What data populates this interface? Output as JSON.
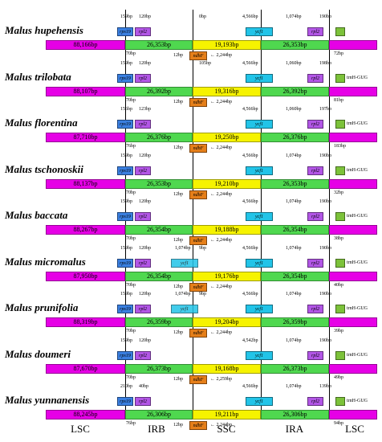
{
  "colors": {
    "lsc": "#e600e6",
    "irb": "#4fd84f",
    "ssc": "#f6f300",
    "ira": "#4fd84f",
    "rps19": "#3a7fe0",
    "rpl2": "#b256e6",
    "ycf1": "#22c4e8",
    "ndhF": "#e57f1a",
    "trnH": "#7cc23a"
  },
  "regions": [
    "LSC",
    "IRB",
    "SSC",
    "IRA",
    "LSC"
  ],
  "tracks": [
    {
      "species": "Malus hupehensis",
      "top": {
        "rps19": "rps19",
        "rpl2": "rpl2",
        "ycf1": "ycf1",
        "rpl2b": "rpl2",
        "trnH": ""
      },
      "top_ann": [
        "159bp",
        "120bp",
        "0bp",
        "4,566bp",
        "1,074bp",
        "190bp"
      ],
      "bars": {
        "lsc": "88,166bp",
        "irb": "26,353bp",
        "ssc": "19,193bp",
        "ira": "26,353bp"
      },
      "bottom_ann": [
        "70bp",
        "12bp",
        "2,244bp",
        "72bp"
      ],
      "ndhF": "ndhF"
    },
    {
      "species": "Malus trilobata",
      "top": {
        "rps19": "rps19",
        "rpl2": "rpl2",
        "ycf1": "ycf1",
        "rpl2b": "rpl2",
        "trnH": "trnH-GUG"
      },
      "top_ann": [
        "159bp",
        "120bp",
        "105bp",
        "4,566bp",
        "1,060bp",
        "198bp"
      ],
      "bars": {
        "lsc": "88,107bp",
        "irb": "26,392bp",
        "ssc": "19,316bp",
        "ira": "26,392bp"
      },
      "bottom_ann": [
        "70bp",
        "12bp",
        "2,244bp",
        "81bp"
      ],
      "ndhF": "ndhF"
    },
    {
      "species": "Malus florentina",
      "top": {
        "rps19": "rps19",
        "rpl2": "rpl2",
        "ycf1": "ycf1",
        "rpl2b": "rpl2",
        "trnH": "trnH-GUG"
      },
      "top_ann": [
        "156bp",
        "123bp",
        "",
        "4,566bp",
        "1,060bp",
        "197bp"
      ],
      "bars": {
        "lsc": "87,710bp",
        "irb": "26,376bp",
        "ssc": "19,250bp",
        "ira": "26,376bp"
      },
      "bottom_ann": [
        "76bp",
        "12bp",
        "2,244bp",
        "183bp"
      ],
      "ndhF": "ndhF"
    },
    {
      "species": "Malus tschonoskii",
      "top": {
        "rps19": "rps19",
        "rpl2": "rpl2",
        "ycf1": "ycf1",
        "rpl2b": "rpl2",
        "trnH": "trnH-GUG"
      },
      "top_ann": [
        "159bp",
        "120bp",
        "",
        "4,566bp",
        "1,074bp",
        "190bp"
      ],
      "bars": {
        "lsc": "88,137bp",
        "irb": "26,353bp",
        "ssc": "19,210bp",
        "ira": "26,353bp"
      },
      "bottom_ann": [
        "70bp",
        "12bp",
        "2,244bp",
        "32bp"
      ],
      "ndhF": "ndhF"
    },
    {
      "species": "Malus baccata",
      "top": {
        "rps19": "rps19",
        "rpl2": "rpl2",
        "ycf1": "ycf1",
        "rpl2b": "rpl2",
        "trnH": "trnH-GUG"
      },
      "top_ann": [
        "159bp",
        "120bp",
        "",
        "4,566bp",
        "1,074bp",
        "190bp"
      ],
      "bars": {
        "lsc": "88,267bp",
        "irb": "26,354bp",
        "ssc": "19,188bp",
        "ira": "26,354bp"
      },
      "bottom_ann": [
        "70bp",
        "12bp",
        "2,244bp",
        "38bp"
      ],
      "ndhF": "ndhF"
    },
    {
      "species": "Malus micromalus",
      "top": {
        "rps19": "rps19",
        "rpl2": "rpl2",
        "ycf1": "ycf1",
        "rpl2b": "rpl2",
        "trnH": "trnH-GUG"
      },
      "top_ann": [
        "159bp",
        "120bp",
        "1,074bp",
        "9bp",
        "4,566bp",
        "1,074bp",
        "190bp"
      ],
      "bars": {
        "lsc": "87,950bp",
        "irb": "26,354bp",
        "ssc": "19,176bp",
        "ira": "26,354bp"
      },
      "bottom_ann": [
        "70bp",
        "12bp",
        "2,244bp",
        "40bp"
      ],
      "ndhF": "ndhF"
    },
    {
      "species": "Malus prunifolia",
      "top": {
        "rps19": "rps19",
        "rpl2": "rpl2",
        "ycf1": "ycf1",
        "rpl2b": "rpl2",
        "trnH": "trnH-GUG"
      },
      "top_ann": [
        "159bp",
        "120bp",
        "1,074bp",
        "9bp",
        "4,566bp",
        "1,074bp",
        "190bp"
      ],
      "bars": {
        "lsc": "88,319bp",
        "irb": "26,359bp",
        "ssc": "19,204bp",
        "ira": "26,359bp"
      },
      "bottom_ann": [
        "70bp",
        "12bp",
        "2,244bp",
        "39bp"
      ],
      "ndhF": "ndhF"
    },
    {
      "species": "Malus doumeri",
      "top": {
        "rps19": "rps19",
        "rpl2": "rpl2",
        "ycf1": "ycf1",
        "rpl2b": "rpl2",
        "trnH": "trnH-GUG"
      },
      "top_ann": [
        "159bp",
        "120bp",
        "",
        "4,542bp",
        "1,074bp",
        "190bp"
      ],
      "bars": {
        "lsc": "87,670bp",
        "irb": "26,373bp",
        "ssc": "19,168bp",
        "ira": "26,373bp"
      },
      "bottom_ann": [
        "70bp",
        "12bp",
        "2,259bp",
        "49bp"
      ],
      "ndhF": "ndhF"
    },
    {
      "species": "Malus yunnanensis",
      "top": {
        "rps19": "rps19",
        "rpl2": "rpl2",
        "ycf1": "ycf1",
        "rpl2b": "rpl2",
        "trnH": "trnH-GUG"
      },
      "top_ann": [
        "210bp",
        "40bp",
        "",
        "4,566bp",
        "1,074bp",
        "139bp"
      ],
      "bars": {
        "lsc": "88,245bp",
        "irb": "26,306bp",
        "ssc": "19,211bp",
        "ira": "26,306bp"
      },
      "bottom_ann": [
        "76bp",
        "12bp",
        "2,244bp",
        "94bp"
      ],
      "ndhF": "ndhF"
    }
  ]
}
